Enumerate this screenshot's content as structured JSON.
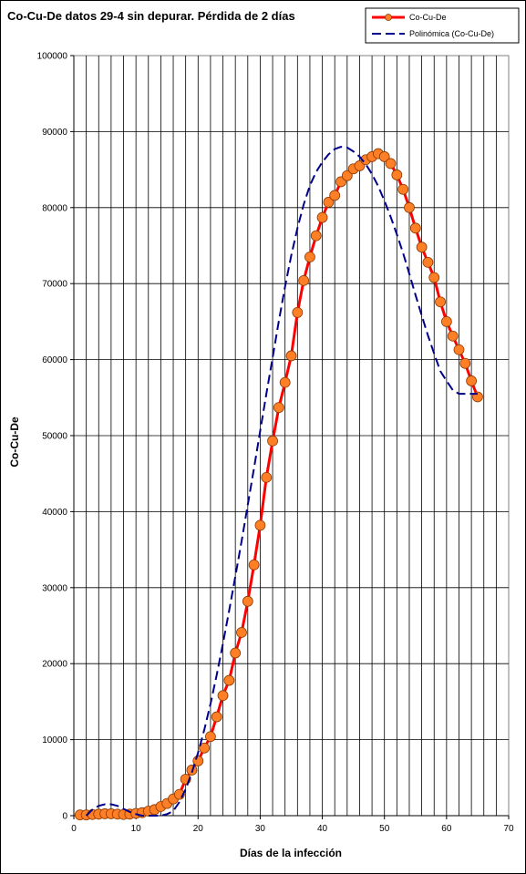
{
  "chart_data": {
    "type": "line",
    "title": "Co-Cu-De  datos 29-4 sin depurar. Pérdida de 2 días",
    "xlabel": "Días de la infección",
    "ylabel": "Co-Cu-De",
    "xlim": [
      0,
      70
    ],
    "ylim": [
      0,
      100000
    ],
    "xticks": [
      0,
      10,
      20,
      30,
      40,
      50,
      60,
      70
    ],
    "yticks": [
      0,
      10000,
      20000,
      30000,
      40000,
      50000,
      60000,
      70000,
      80000,
      90000,
      100000
    ],
    "x_minor_gridline_step": 2,
    "grid": true,
    "legend_position": "top-right",
    "series": [
      {
        "name": "Co-Cu-De",
        "color": "#ff0000",
        "marker_color": "#ff7f27",
        "style": "solid-with-markers",
        "x": [
          1,
          2,
          3,
          4,
          5,
          6,
          7,
          8,
          9,
          10,
          11,
          12,
          13,
          14,
          15,
          16,
          17,
          18,
          19,
          20,
          21,
          22,
          23,
          24,
          25,
          26,
          27,
          28,
          29,
          30,
          31,
          32,
          33,
          34,
          35,
          36,
          37,
          38,
          39,
          40,
          41,
          42,
          43,
          44,
          45,
          46,
          47,
          48,
          49,
          50,
          51,
          52,
          53,
          54,
          55,
          56,
          57,
          58,
          59,
          60,
          61,
          62,
          63,
          64,
          65
        ],
        "y": [
          100,
          100,
          150,
          200,
          250,
          250,
          200,
          150,
          200,
          300,
          400,
          600,
          800,
          1200,
          1600,
          2200,
          2800,
          4800,
          6000,
          7200,
          8900,
          10400,
          13000,
          15800,
          17800,
          21400,
          24100,
          28200,
          33000,
          38200,
          44500,
          49300,
          53700,
          57000,
          60500,
          66200,
          70400,
          73500,
          76300,
          78700,
          80700,
          81600,
          83400,
          84200,
          85100,
          85500,
          86300,
          86700,
          87100,
          86700,
          85800,
          84300,
          82400,
          80000,
          77300,
          74800,
          72800,
          70800,
          67600,
          65000,
          63100,
          61300,
          59500,
          57200,
          55100
        ]
      },
      {
        "name": "Polinómica (Co-Cu-De)",
        "color": "#00008b",
        "style": "dashed",
        "x": [
          2,
          3,
          4,
          5,
          6,
          7,
          8,
          9,
          10,
          11,
          12,
          13,
          14,
          15,
          16,
          17,
          18,
          19,
          20,
          21,
          22,
          23,
          24,
          25,
          26,
          27,
          28,
          29,
          30,
          31,
          32,
          33,
          34,
          35,
          36,
          37,
          38,
          39,
          40,
          41,
          42,
          43,
          44,
          45,
          46,
          47,
          48,
          49,
          50,
          51,
          52,
          53,
          54,
          55,
          56,
          57,
          58,
          59,
          60,
          61,
          62,
          63,
          64,
          65
        ],
        "y": [
          0,
          800,
          1300,
          1500,
          1500,
          1300,
          900,
          500,
          200,
          0,
          0,
          0,
          0,
          200,
          600,
          1800,
          3500,
          5700,
          8300,
          11300,
          14700,
          18500,
          22600,
          27000,
          31500,
          36100,
          40900,
          45700,
          50600,
          55500,
          60300,
          65100,
          69600,
          73700,
          77300,
          80400,
          82900,
          84700,
          86000,
          87000,
          87700,
          88000,
          87900,
          87400,
          86700,
          85700,
          84400,
          82800,
          80900,
          78800,
          76500,
          74000,
          71300,
          68500,
          65800,
          63200,
          60800,
          58500,
          57200,
          56000,
          55500,
          55500,
          55500,
          55500
        ]
      }
    ]
  }
}
